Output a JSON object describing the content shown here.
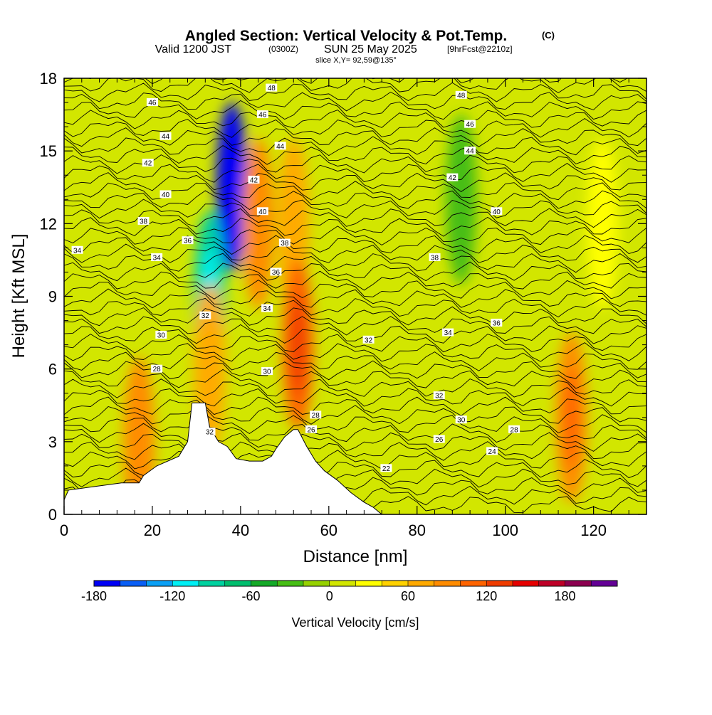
{
  "title": {
    "main": "Angled Section: Vertical Velocity & Pot.Temp.",
    "unit": "(C)",
    "valid_prefix": "Valid 1200 JST",
    "valid_zulu": "(0300Z)",
    "valid_date": "SUN 25 May 2025",
    "forecast": "[9hrFcst@2210z]",
    "slice": "slice X,Y= 92,59@135°"
  },
  "colors": {
    "terrain": "#ffffff",
    "contour": "#000000",
    "frame": "#000000",
    "scale": [
      "#0000f5",
      "#0a5ff5",
      "#0aa0f5",
      "#00f0f5",
      "#00d2a0",
      "#00be6e",
      "#14aa28",
      "#46be14",
      "#96d200",
      "#d2e600",
      "#ffff00",
      "#ffd200",
      "#ffaa00",
      "#ff8c00",
      "#ff6400",
      "#f03c00",
      "#e60000",
      "#be0028",
      "#8c0050",
      "#640096"
    ]
  },
  "chart_data": {
    "type": "heatmap",
    "xlabel": "Distance [nm]",
    "ylabel": "Height [Kft MSL]",
    "xlim": [
      0,
      132
    ],
    "ylim": [
      0,
      18
    ],
    "xticks": [
      0,
      20,
      40,
      60,
      80,
      100,
      120
    ],
    "yticks": [
      0,
      3,
      6,
      9,
      12,
      15,
      18
    ],
    "colorbar": {
      "label": "Vertical Velocity [cm/s]",
      "range": [
        -180,
        220
      ],
      "step": 20,
      "ticks": [
        -180,
        -120,
        -60,
        0,
        60,
        120,
        180
      ]
    },
    "terrain_profile": [
      [
        0,
        0.6
      ],
      [
        1,
        1.0
      ],
      [
        9,
        1.2
      ],
      [
        13,
        1.3
      ],
      [
        17,
        1.3
      ],
      [
        18,
        1.6
      ],
      [
        21,
        2.0
      ],
      [
        26,
        2.4
      ],
      [
        28,
        3.0
      ],
      [
        29,
        4.6
      ],
      [
        32,
        4.6
      ],
      [
        33,
        3.6
      ],
      [
        35,
        3.0
      ],
      [
        37,
        2.8
      ],
      [
        39,
        2.3
      ],
      [
        42,
        2.2
      ],
      [
        45,
        2.2
      ],
      [
        47,
        2.4
      ],
      [
        48,
        2.7
      ],
      [
        50,
        3.2
      ],
      [
        52,
        3.5
      ],
      [
        53,
        3.5
      ],
      [
        55,
        2.8
      ],
      [
        57,
        2.2
      ],
      [
        59,
        1.8
      ],
      [
        62,
        1.4
      ],
      [
        65,
        0.9
      ],
      [
        68,
        0.5
      ],
      [
        70,
        0.3
      ],
      [
        72,
        0
      ]
    ],
    "vv_features": [
      {
        "x": 38,
        "y": 13.5,
        "value": -170
      },
      {
        "x": 33,
        "y": 9.0,
        "value": -100
      },
      {
        "x": 44,
        "y": 12.0,
        "value": 80
      },
      {
        "x": 52,
        "y": 12.0,
        "value": 60
      },
      {
        "x": 53,
        "y": 7.0,
        "value": 110
      },
      {
        "x": 33,
        "y": 6.0,
        "value": 60
      },
      {
        "x": 17,
        "y": 3.0,
        "value": 80
      },
      {
        "x": 115,
        "y": 4.0,
        "value": 90
      },
      {
        "x": 90,
        "y": 13.0,
        "value": -40
      },
      {
        "x": 122,
        "y": 12.0,
        "value": 20
      }
    ],
    "theta_labels": [
      {
        "x": 33,
        "y": 3.4,
        "text": "32"
      },
      {
        "x": 47,
        "y": 17.6,
        "text": "48"
      },
      {
        "x": 20,
        "y": 17.0,
        "text": "46"
      },
      {
        "x": 90,
        "y": 17.3,
        "text": "48"
      },
      {
        "x": 45,
        "y": 16.5,
        "text": "46"
      },
      {
        "x": 92,
        "y": 16.1,
        "text": "46"
      },
      {
        "x": 23,
        "y": 15.6,
        "text": "44"
      },
      {
        "x": 49,
        "y": 15.2,
        "text": "44"
      },
      {
        "x": 92,
        "y": 15.0,
        "text": "44"
      },
      {
        "x": 19,
        "y": 14.5,
        "text": "42"
      },
      {
        "x": 43,
        "y": 13.8,
        "text": "42"
      },
      {
        "x": 88,
        "y": 13.9,
        "text": "42"
      },
      {
        "x": 23,
        "y": 13.2,
        "text": "40"
      },
      {
        "x": 45,
        "y": 12.5,
        "text": "40"
      },
      {
        "x": 98,
        "y": 12.5,
        "text": "40"
      },
      {
        "x": 18,
        "y": 12.1,
        "text": "38"
      },
      {
        "x": 50,
        "y": 11.2,
        "text": "38"
      },
      {
        "x": 84,
        "y": 10.6,
        "text": "38"
      },
      {
        "x": 3,
        "y": 10.9,
        "text": "34"
      },
      {
        "x": 28,
        "y": 11.3,
        "text": "36"
      },
      {
        "x": 21,
        "y": 10.6,
        "text": "34"
      },
      {
        "x": 48,
        "y": 10.0,
        "text": "36"
      },
      {
        "x": 46,
        "y": 8.5,
        "text": "34"
      },
      {
        "x": 32,
        "y": 8.2,
        "text": "32"
      },
      {
        "x": 98,
        "y": 7.9,
        "text": "36"
      },
      {
        "x": 87,
        "y": 7.5,
        "text": "34"
      },
      {
        "x": 22,
        "y": 7.4,
        "text": "30"
      },
      {
        "x": 69,
        "y": 7.2,
        "text": "32"
      },
      {
        "x": 21,
        "y": 6.0,
        "text": "28"
      },
      {
        "x": 46,
        "y": 5.9,
        "text": "30"
      },
      {
        "x": 85,
        "y": 4.9,
        "text": "32"
      },
      {
        "x": 57,
        "y": 4.1,
        "text": "28"
      },
      {
        "x": 90,
        "y": 3.9,
        "text": "30"
      },
      {
        "x": 56,
        "y": 3.5,
        "text": "26"
      },
      {
        "x": 102,
        "y": 3.5,
        "text": "28"
      },
      {
        "x": 85,
        "y": 3.1,
        "text": "26"
      },
      {
        "x": 97,
        "y": 2.6,
        "text": "24"
      },
      {
        "x": 73,
        "y": 1.9,
        "text": "22"
      }
    ]
  }
}
